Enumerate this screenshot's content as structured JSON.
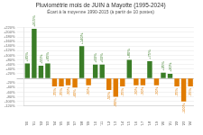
{
  "chart_data": {
    "type": "bar",
    "title": "Pluviométrie mois de JUIN à Mayotte (1995-2024)",
    "subtitle": "Écart à la moyenne 1990-2015 (à partir de 10 postes)",
    "categories": [
      "'00",
      "'01",
      "'02",
      "'03",
      "'04",
      "'05",
      "'06",
      "'07",
      "'08",
      "'09",
      "'10",
      "'11",
      "'12",
      "'13",
      "'14",
      "'15",
      "'16",
      "'17",
      "'18",
      "'19",
      "'20",
      "'21",
      "'22",
      "'23",
      "'24"
    ],
    "values": [
      65,
      215,
      55,
      65,
      -35,
      -35,
      -30,
      -40,
      140,
      -30,
      60,
      60,
      -50,
      -80,
      -35,
      80,
      -30,
      -30,
      75,
      -30,
      25,
      20,
      -35,
      -100,
      -35
    ],
    "value_labels": [
      "+65%",
      "+215%",
      "+55%",
      "+65%",
      "-35%",
      "-35%",
      "-30%",
      "-40%",
      "+140%",
      "-30%",
      "+60%",
      "+60%",
      "-50%",
      "-80%",
      "-35%",
      "+80%",
      "-30%",
      "-30%",
      "+75%",
      "-30%",
      "+25%",
      "+20%",
      "-35%",
      "-100%",
      "-35%"
    ],
    "colors": [
      "#3a7d27",
      "#3a7d27",
      "#3a7d27",
      "#3a7d27",
      "#e07b00",
      "#e07b00",
      "#e07b00",
      "#e07b00",
      "#3a7d27",
      "#e07b00",
      "#3a7d27",
      "#3a7d27",
      "#e07b00",
      "#e07b00",
      "#e07b00",
      "#3a7d27",
      "#e07b00",
      "#e07b00",
      "#3a7d27",
      "#e07b00",
      "#3a7d27",
      "#3a7d27",
      "#e07b00",
      "#e07b00",
      "#e07b00"
    ],
    "data_labels": true,
    "ylim": [
      -120,
      220
    ],
    "yticks": [
      {
        "value": -120,
        "label": "-120%"
      },
      {
        "value": -100,
        "label": "-100%"
      },
      {
        "value": -80,
        "label": "-80%"
      },
      {
        "value": -60,
        "label": "-60%"
      },
      {
        "value": -40,
        "label": "-40%"
      },
      {
        "value": -20,
        "label": "-20%"
      },
      {
        "value": 0,
        "label": null
      },
      {
        "value": 20,
        "label": "+20%"
      },
      {
        "value": 40,
        "label": "+40%"
      },
      {
        "value": 60,
        "label": "+60%"
      },
      {
        "value": 80,
        "label": "+80%"
      },
      {
        "value": 100,
        "label": "+100%"
      },
      {
        "value": 120,
        "label": "+120%"
      },
      {
        "value": 140,
        "label": "+140%"
      },
      {
        "value": 160,
        "label": "+160%"
      },
      {
        "value": 180,
        "label": "+180%"
      },
      {
        "value": 200,
        "label": "+200%"
      },
      {
        "value": 220,
        "label": "+220%"
      }
    ],
    "grid": true
  }
}
